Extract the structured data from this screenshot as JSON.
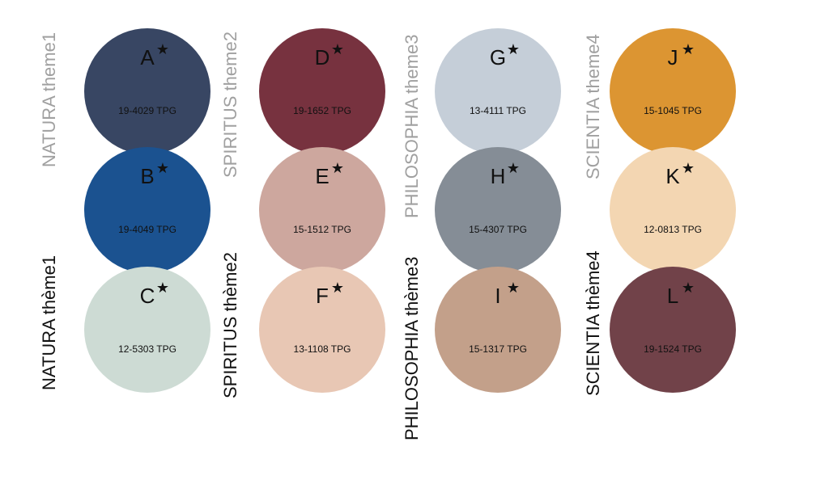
{
  "themes": [
    {
      "label_top": "NATURA theme1",
      "label_bottom": "NATURA thème1",
      "swatches": [
        {
          "letter": "A",
          "star": "★",
          "code": "19-4029 TPG",
          "color": "#384663"
        },
        {
          "letter": "B",
          "star": "★",
          "code": "19-4049 TPG",
          "color": "#1b5290"
        },
        {
          "letter": "C",
          "star": "★",
          "code": "12-5303 TPG",
          "color": "#cddbd4"
        }
      ]
    },
    {
      "label_top": "SPIRITUS theme2",
      "label_bottom": "SPIRITUS thème2",
      "swatches": [
        {
          "letter": "D",
          "star": "★",
          "code": "19-1652 TPG",
          "color": "#77323f"
        },
        {
          "letter": "E",
          "star": "★",
          "code": "15-1512 TPG",
          "color": "#cda79e"
        },
        {
          "letter": "F",
          "star": "★",
          "code": "13-1108 TPG",
          "color": "#e8c7b4"
        }
      ]
    },
    {
      "label_top": "PHILOSOPHIA theme3",
      "label_bottom": "PHILOSOPHIA thème3",
      "swatches": [
        {
          "letter": "G",
          "star": "★",
          "code": "13-4111 TPG",
          "color": "#c5ced8"
        },
        {
          "letter": "H",
          "star": "★",
          "code": "15-4307 TPG",
          "color": "#858d96"
        },
        {
          "letter": "I",
          "star": "★",
          "code": "15-1317 TPG",
          "color": "#c3a08a"
        }
      ]
    },
    {
      "label_top": "SCIENTIA theme4",
      "label_bottom": "SCIENTIA thème4",
      "swatches": [
        {
          "letter": "J",
          "star": "★",
          "code": "15-1045 TPG",
          "color": "#dc9532"
        },
        {
          "letter": "K",
          "star": "★",
          "code": "12-0813 TPG",
          "color": "#f3d6b2"
        },
        {
          "letter": "L",
          "star": "★",
          "code": "19-1524 TPG",
          "color": "#714249"
        }
      ]
    }
  ]
}
